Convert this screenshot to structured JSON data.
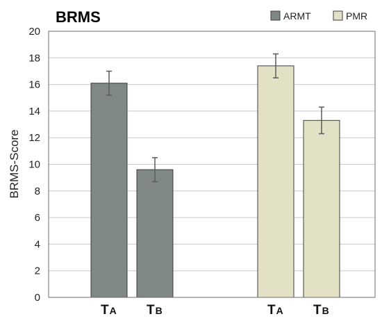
{
  "chart_data": {
    "type": "bar",
    "title": "BRMS",
    "ylabel": "BRMS-Score",
    "xlabel": "",
    "ylim": [
      0,
      20
    ],
    "yticks": [
      0,
      2,
      4,
      6,
      8,
      10,
      12,
      14,
      16,
      18,
      20
    ],
    "grid": true,
    "legend_position": "top-right",
    "groups": [
      {
        "series": "ARMT",
        "color": "#808887",
        "bars": [
          {
            "label_main": "T",
            "label_sub": "A",
            "value": 16.1,
            "error": 0.9
          },
          {
            "label_main": "T",
            "label_sub": "B",
            "value": 9.6,
            "error": 0.9
          }
        ]
      },
      {
        "series": "PMR",
        "color": "#e3e1c5",
        "bars": [
          {
            "label_main": "T",
            "label_sub": "A",
            "value": 17.4,
            "error": 0.9
          },
          {
            "label_main": "T",
            "label_sub": "B",
            "value": 13.3,
            "error": 1.0
          }
        ]
      }
    ],
    "legend": [
      {
        "name": "ARMT",
        "color": "#808887"
      },
      {
        "name": "PMR",
        "color": "#e3e1c5"
      }
    ]
  }
}
